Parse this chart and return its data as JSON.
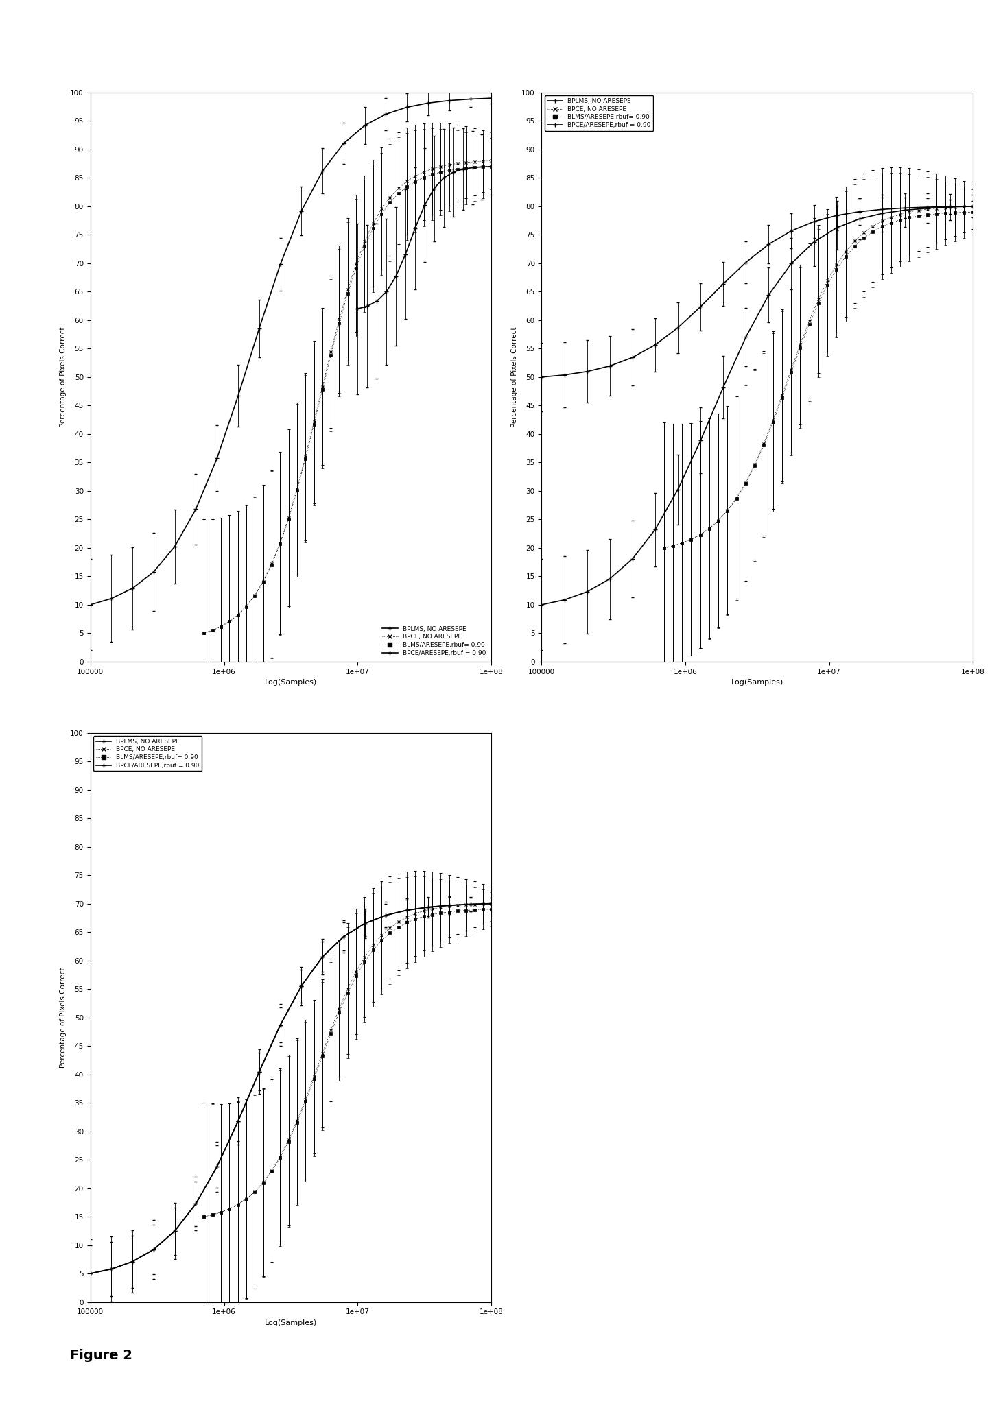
{
  "figure_label": "Figure 2",
  "xlabel": "Log(Samples)",
  "ylabel": "Percentage of Pixels Correct",
  "xlim_log": [
    100000,
    100000000.0
  ],
  "ylim": [
    0,
    100
  ],
  "yticks": [
    0,
    5,
    10,
    15,
    20,
    25,
    30,
    35,
    40,
    45,
    50,
    55,
    60,
    65,
    70,
    75,
    80,
    85,
    90,
    95,
    100
  ],
  "xtick_labels": [
    "100000",
    "1e+06",
    "1e+07",
    "1e+08"
  ],
  "xtick_vals": [
    100000,
    1000000,
    10000000,
    100000000
  ],
  "subplots": [
    {
      "legend_loc": "lower right",
      "legend_frameon": false,
      "series": [
        {
          "label": "BPLMS, NO ARESEPE",
          "style": "solid",
          "marker": "+",
          "x_log_start": 5.0,
          "x_log_end": 8.0,
          "y_start": 10,
          "y_end": 99,
          "yerr_start": 8,
          "yerr_end": 1,
          "n_points": 20
        },
        {
          "label": "BPCE, NO ARESEPE",
          "style": "dotted",
          "marker": "x",
          "x_log_start": 5.85,
          "x_log_end": 8.0,
          "y_start": 5,
          "y_end": 88,
          "yerr_start": 20,
          "yerr_end": 5,
          "n_points": 35
        },
        {
          "label": "BLMS/ARESEPE,rbuf= 0.90",
          "style": "dotted",
          "marker": "s",
          "x_log_start": 5.85,
          "x_log_end": 8.0,
          "y_start": 5,
          "y_end": 87,
          "yerr_start": 20,
          "yerr_end": 5,
          "n_points": 35
        },
        {
          "label": "BPCE/ARESEPE,rbuf = 0.90",
          "style": "solid",
          "marker": "+",
          "x_log_start": 7.0,
          "x_log_end": 8.0,
          "y_start": 62,
          "y_end": 87,
          "yerr_start": 15,
          "yerr_end": 5,
          "n_points": 15
        }
      ]
    },
    {
      "legend_loc": "upper left",
      "legend_frameon": true,
      "series": [
        {
          "label": "BPLMS, NO ARESEPE",
          "style": "solid",
          "marker": "+",
          "x_log_start": 5.0,
          "x_log_end": 8.0,
          "y_start": 50,
          "y_end": 80,
          "yerr_start": 6,
          "yerr_end": 1,
          "n_points": 20
        },
        {
          "label": "BPCE, NO ARESEPE",
          "style": "dotted",
          "marker": "x",
          "x_log_start": 5.85,
          "x_log_end": 8.0,
          "y_start": 20,
          "y_end": 80,
          "yerr_start": 22,
          "yerr_end": 4,
          "n_points": 35
        },
        {
          "label": "BLMS/ARESEPE,rbuf= 0.90",
          "style": "dotted",
          "marker": "s",
          "x_log_start": 5.85,
          "x_log_end": 8.0,
          "y_start": 20,
          "y_end": 79,
          "yerr_start": 22,
          "yerr_end": 4,
          "n_points": 35
        },
        {
          "label": "BPCE/ARESEPE,rbuf = 0.90",
          "style": "solid",
          "marker": "+",
          "x_log_start": 5.0,
          "x_log_end": 8.0,
          "y_start": 10,
          "y_end": 80,
          "yerr_start": 8,
          "yerr_end": 2,
          "n_points": 20
        }
      ]
    },
    {
      "legend_loc": "upper left",
      "legend_frameon": true,
      "series": [
        {
          "label": "BPLMS, NO ARESEPE",
          "style": "solid",
          "marker": "+",
          "x_log_start": 5.0,
          "x_log_end": 8.0,
          "y_start": 5,
          "y_end": 70,
          "yerr_start": 6,
          "yerr_end": 1,
          "n_points": 20
        },
        {
          "label": "BPCE, NO ARESEPE",
          "style": "dotted",
          "marker": "x",
          "x_log_start": 5.85,
          "x_log_end": 8.0,
          "y_start": 15,
          "y_end": 70,
          "yerr_start": 20,
          "yerr_end": 3,
          "n_points": 35
        },
        {
          "label": "BLMS/ARESEPE,rbuf= 0.90",
          "style": "dotted",
          "marker": "s",
          "x_log_start": 5.85,
          "x_log_end": 8.0,
          "y_start": 15,
          "y_end": 69,
          "yerr_start": 20,
          "yerr_end": 3,
          "n_points": 35
        },
        {
          "label": "BPCE/ARESEPE,rbuf = 0.90",
          "style": "solid",
          "marker": "+",
          "x_log_start": 5.0,
          "x_log_end": 8.0,
          "y_start": 5,
          "y_end": 70,
          "yerr_start": 5,
          "yerr_end": 1,
          "n_points": 20
        }
      ]
    }
  ]
}
